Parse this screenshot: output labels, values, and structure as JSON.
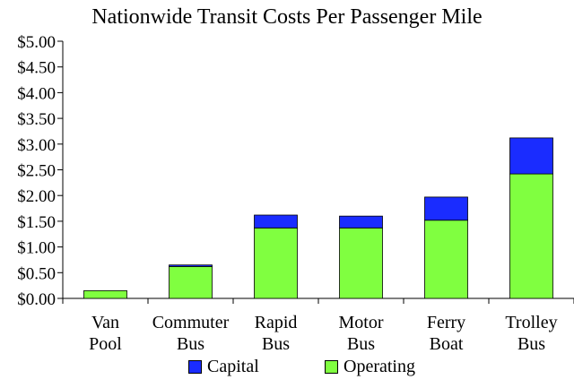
{
  "chart_data": {
    "type": "bar",
    "stacked": true,
    "title": "Nationwide Transit Costs Per Passenger Mile",
    "categories": [
      [
        "Van",
        "Pool"
      ],
      [
        "Commuter",
        "Bus"
      ],
      [
        "Rapid",
        "Bus"
      ],
      [
        "Motor",
        "Bus"
      ],
      [
        "Ferry",
        "Boat"
      ],
      [
        "Trolley",
        "Bus"
      ]
    ],
    "series": [
      {
        "name": "Operating",
        "color": "#80ff40",
        "values": [
          0.15,
          0.62,
          1.37,
          1.37,
          1.52,
          2.42
        ]
      },
      {
        "name": "Capital",
        "color": "#1a2cff",
        "values": [
          0.0,
          0.03,
          0.25,
          0.23,
          0.45,
          0.7
        ]
      }
    ],
    "ylim": [
      0,
      5
    ],
    "yticks": [
      0,
      0.5,
      1,
      1.5,
      2,
      2.5,
      3,
      3.5,
      4,
      4.5,
      5
    ],
    "ytick_labels": [
      "$0.00",
      "$0.50",
      "$1.00",
      "$1.50",
      "$2.00",
      "$2.50",
      "$3.00",
      "$3.50",
      "$4.00",
      "$4.50",
      "$5.00"
    ],
    "grid": false,
    "legend": {
      "position": "bottom",
      "order": [
        "Capital",
        "Operating"
      ]
    }
  }
}
